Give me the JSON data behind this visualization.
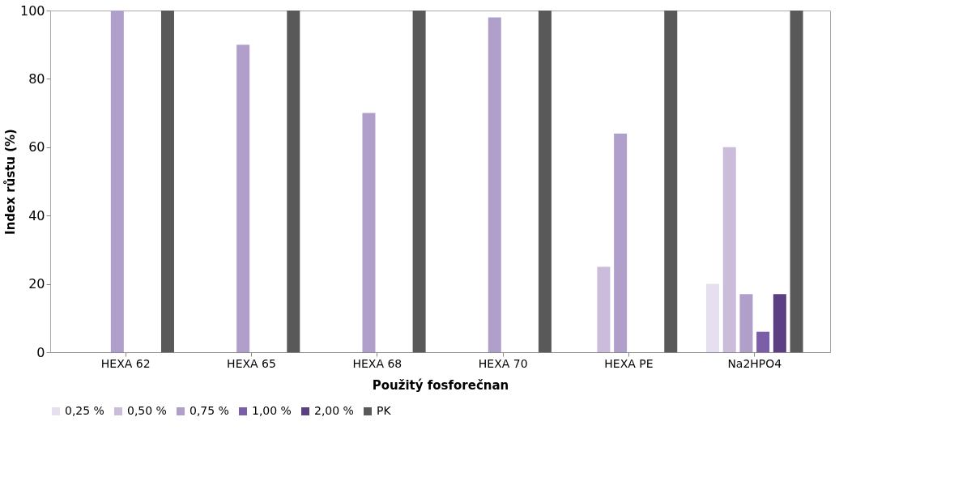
{
  "chart_data": {
    "type": "bar",
    "xlabel": "Použitý fosforečnan",
    "ylabel": "Index růstu (%)",
    "categories": [
      "HEXA 62",
      "HEXA 65",
      "HEXA 68",
      "HEXA 70",
      "HEXA PE",
      "Na2HPO4"
    ],
    "series": [
      {
        "name": "0,25 %",
        "color": "#e6dff0",
        "values": [
          0,
          0,
          0,
          0,
          0,
          20
        ]
      },
      {
        "name": "0,50 %",
        "color": "#cbbcdc",
        "values": [
          0,
          0,
          0,
          0,
          25,
          60
        ]
      },
      {
        "name": "0,75 %",
        "color": "#b09fcb",
        "values": [
          100,
          90,
          70,
          98,
          64,
          17
        ]
      },
      {
        "name": "1,00 %",
        "color": "#7b5ea7",
        "values": [
          0,
          0,
          0,
          0,
          0,
          6
        ]
      },
      {
        "name": "2,00 %",
        "color": "#5b3f82",
        "values": [
          0,
          0,
          0,
          0,
          0,
          17
        ]
      },
      {
        "name": "PK",
        "color": "#595959",
        "values": [
          100,
          100,
          100,
          100,
          100,
          100
        ]
      }
    ],
    "ylim": [
      0,
      100
    ],
    "yticks": [
      0,
      20,
      40,
      60,
      80,
      100
    ],
    "grid": false,
    "legend": "bottom"
  }
}
